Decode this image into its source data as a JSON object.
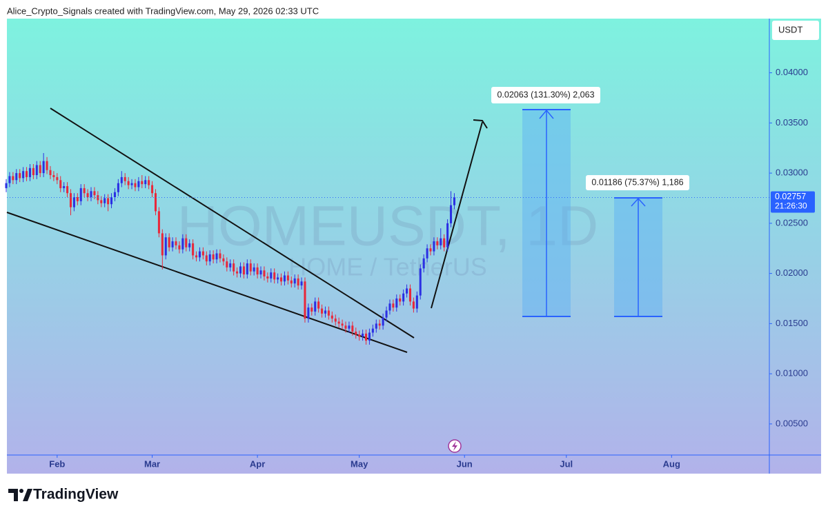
{
  "header": {
    "text": "Alice_Crypto_Signals created with TradingView.com, May 29, 2026 02:33 UTC"
  },
  "chart_data": {
    "type": "candlestick",
    "watermark": "HOMEUSDT, 1D",
    "watermark_subtitle": "HOME / TetherUS",
    "currency": "USDT",
    "up_color": "#2b2fe3",
    "down_color": "#e8283a",
    "x": [
      -15,
      -14,
      -13,
      -12,
      -11,
      -10,
      -9,
      -8,
      -7,
      -6,
      -5,
      -4,
      -3,
      -2,
      -1,
      0,
      1,
      2,
      3,
      4,
      5,
      6,
      7,
      8,
      9,
      10,
      11,
      12,
      13,
      14,
      15,
      16,
      17,
      18,
      19,
      20,
      21,
      22,
      23,
      24,
      25,
      26,
      27,
      28,
      29,
      30,
      31,
      32,
      33,
      34,
      35,
      36,
      37,
      38,
      39,
      40,
      41,
      42,
      43,
      44,
      45,
      46,
      47,
      48,
      49,
      50,
      51,
      52,
      53,
      54,
      55,
      56,
      57,
      58,
      59,
      60,
      61,
      62,
      63,
      64,
      65,
      66,
      67,
      68,
      69,
      70,
      71,
      72,
      73,
      74,
      75,
      76,
      77,
      78,
      79,
      80,
      81,
      82,
      83,
      84,
      85,
      86,
      87,
      88,
      89,
      90,
      91,
      92,
      93,
      94,
      95,
      96,
      97,
      98,
      99,
      100,
      101,
      102,
      103,
      104,
      105,
      106,
      107,
      108,
      109,
      110,
      111,
      112,
      113,
      114,
      115,
      116,
      117
    ],
    "open": [
      0.0285,
      0.029,
      0.0297,
      0.0293,
      0.03,
      0.0295,
      0.0302,
      0.0296,
      0.0305,
      0.0298,
      0.0308,
      0.03,
      0.0312,
      0.0303,
      0.0298,
      0.0296,
      0.0293,
      0.0285,
      0.0287,
      0.028,
      0.0266,
      0.0276,
      0.0272,
      0.0285,
      0.028,
      0.0276,
      0.0282,
      0.0278,
      0.0273,
      0.027,
      0.0275,
      0.0269,
      0.0276,
      0.0281,
      0.029,
      0.0296,
      0.0292,
      0.0288,
      0.029,
      0.0286,
      0.0292,
      0.0289,
      0.0293,
      0.0288,
      0.028,
      0.0262,
      0.024,
      0.0218,
      0.0236,
      0.0226,
      0.0232,
      0.0228,
      0.0224,
      0.0235,
      0.0226,
      0.023,
      0.0218,
      0.0216,
      0.0222,
      0.0218,
      0.0212,
      0.0219,
      0.0214,
      0.022,
      0.0215,
      0.0212,
      0.0206,
      0.021,
      0.0202,
      0.02,
      0.0207,
      0.0199,
      0.021,
      0.0202,
      0.0206,
      0.0199,
      0.0203,
      0.0197,
      0.0195,
      0.0201,
      0.0194,
      0.0196,
      0.0192,
      0.0198,
      0.0193,
      0.019,
      0.0195,
      0.0188,
      0.0192,
      0.0155,
      0.0166,
      0.0162,
      0.0172,
      0.0165,
      0.016,
      0.0163,
      0.0158,
      0.0155,
      0.0152,
      0.015,
      0.0148,
      0.0145,
      0.0148,
      0.0142,
      0.0139,
      0.0137,
      0.014,
      0.0133,
      0.0141,
      0.0145,
      0.015,
      0.0148,
      0.0156,
      0.0163,
      0.017,
      0.0166,
      0.0175,
      0.0172,
      0.018,
      0.0185,
      0.0172,
      0.0165,
      0.0178,
      0.0205,
      0.0215,
      0.0225,
      0.0222,
      0.0232,
      0.0228,
      0.0235,
      0.0226,
      0.025,
      0.0268
    ],
    "high": [
      0.0294,
      0.0301,
      0.0301,
      0.0304,
      0.0304,
      0.0306,
      0.0306,
      0.0309,
      0.0309,
      0.0312,
      0.0312,
      0.032,
      0.0316,
      0.0307,
      0.0302,
      0.03,
      0.0297,
      0.0291,
      0.0291,
      0.0284,
      0.028,
      0.028,
      0.0289,
      0.0289,
      0.0284,
      0.0286,
      0.0286,
      0.0282,
      0.0277,
      0.0279,
      0.0279,
      0.028,
      0.0285,
      0.0294,
      0.0302,
      0.03,
      0.0296,
      0.0294,
      0.0294,
      0.0296,
      0.0298,
      0.0297,
      0.0297,
      0.0292,
      0.0284,
      0.0266,
      0.0244,
      0.024,
      0.024,
      0.0236,
      0.0236,
      0.0232,
      0.0239,
      0.0239,
      0.0234,
      0.0234,
      0.0222,
      0.0226,
      0.0226,
      0.0222,
      0.0223,
      0.0223,
      0.0224,
      0.0224,
      0.0219,
      0.0216,
      0.0214,
      0.0214,
      0.0206,
      0.0211,
      0.0211,
      0.0214,
      0.0214,
      0.021,
      0.021,
      0.0207,
      0.0207,
      0.0201,
      0.0205,
      0.0205,
      0.02,
      0.02,
      0.0202,
      0.0202,
      0.0197,
      0.0199,
      0.0199,
      0.0196,
      0.0196,
      0.017,
      0.017,
      0.0176,
      0.0176,
      0.0169,
      0.0167,
      0.0167,
      0.0162,
      0.0159,
      0.0156,
      0.0154,
      0.0152,
      0.0152,
      0.0152,
      0.0146,
      0.0143,
      0.0144,
      0.0144,
      0.0145,
      0.0149,
      0.0154,
      0.0154,
      0.016,
      0.0167,
      0.0174,
      0.0174,
      0.0179,
      0.0179,
      0.0184,
      0.0189,
      0.0189,
      0.0176,
      0.0182,
      0.0209,
      0.0219,
      0.0229,
      0.0229,
      0.0236,
      0.0236,
      0.0245,
      0.0239,
      0.0254,
      0.0282,
      0.028
    ],
    "low": [
      0.0281,
      0.0286,
      0.0289,
      0.0289,
      0.0291,
      0.0291,
      0.0292,
      0.0292,
      0.0294,
      0.0294,
      0.0296,
      0.0296,
      0.0299,
      0.0294,
      0.0292,
      0.0289,
      0.0281,
      0.0281,
      0.0276,
      0.0258,
      0.0262,
      0.0268,
      0.0268,
      0.0276,
      0.0272,
      0.0272,
      0.0274,
      0.0269,
      0.0266,
      0.0266,
      0.0262,
      0.0265,
      0.0272,
      0.0277,
      0.0286,
      0.0288,
      0.0284,
      0.0284,
      0.0282,
      0.0282,
      0.0285,
      0.0285,
      0.0284,
      0.0276,
      0.0258,
      0.0236,
      0.0204,
      0.0214,
      0.0222,
      0.0222,
      0.0224,
      0.022,
      0.022,
      0.0222,
      0.0222,
      0.0214,
      0.0212,
      0.0212,
      0.0214,
      0.0208,
      0.0208,
      0.021,
      0.021,
      0.0211,
      0.0208,
      0.0202,
      0.0202,
      0.0198,
      0.0196,
      0.0196,
      0.0195,
      0.0195,
      0.0198,
      0.0198,
      0.0195,
      0.0195,
      0.0193,
      0.0191,
      0.0191,
      0.019,
      0.019,
      0.0188,
      0.0188,
      0.0189,
      0.0186,
      0.0186,
      0.0184,
      0.0184,
      0.0151,
      0.0151,
      0.0158,
      0.0158,
      0.0161,
      0.0156,
      0.0156,
      0.0154,
      0.0151,
      0.0148,
      0.0146,
      0.0144,
      0.0141,
      0.0141,
      0.0138,
      0.0135,
      0.0133,
      0.0133,
      0.0129,
      0.0129,
      0.0137,
      0.0141,
      0.0144,
      0.0144,
      0.0152,
      0.0159,
      0.0162,
      0.0162,
      0.0168,
      0.0168,
      0.0176,
      0.0168,
      0.0161,
      0.0161,
      0.0174,
      0.0201,
      0.0211,
      0.0218,
      0.0218,
      0.0224,
      0.0224,
      0.0222,
      0.0222,
      0.0246,
      0.0264
    ],
    "close": [
      0.029,
      0.0297,
      0.0293,
      0.03,
      0.0295,
      0.0302,
      0.0296,
      0.0305,
      0.0298,
      0.0308,
      0.03,
      0.0312,
      0.0303,
      0.0298,
      0.0296,
      0.0293,
      0.0285,
      0.0287,
      0.028,
      0.0266,
      0.0276,
      0.0272,
      0.0285,
      0.028,
      0.0276,
      0.0282,
      0.0278,
      0.0273,
      0.027,
      0.0275,
      0.0269,
      0.0276,
      0.0281,
      0.029,
      0.0296,
      0.0292,
      0.0288,
      0.029,
      0.0286,
      0.0292,
      0.0289,
      0.0293,
      0.0288,
      0.028,
      0.0262,
      0.024,
      0.0218,
      0.0236,
      0.0226,
      0.0232,
      0.0228,
      0.0224,
      0.0235,
      0.0226,
      0.023,
      0.0218,
      0.0216,
      0.0222,
      0.0218,
      0.0212,
      0.0219,
      0.0214,
      0.022,
      0.0215,
      0.0212,
      0.0206,
      0.021,
      0.0202,
      0.02,
      0.0207,
      0.0199,
      0.021,
      0.0202,
      0.0206,
      0.0199,
      0.0203,
      0.0197,
      0.0195,
      0.0201,
      0.0194,
      0.0196,
      0.0192,
      0.0198,
      0.0193,
      0.019,
      0.0195,
      0.0188,
      0.0192,
      0.0155,
      0.0166,
      0.0162,
      0.0172,
      0.0165,
      0.016,
      0.0163,
      0.0158,
      0.0155,
      0.0152,
      0.015,
      0.0148,
      0.0145,
      0.0148,
      0.0142,
      0.0139,
      0.0137,
      0.014,
      0.0133,
      0.0141,
      0.0145,
      0.015,
      0.0148,
      0.0156,
      0.0163,
      0.017,
      0.0166,
      0.0175,
      0.0172,
      0.018,
      0.0185,
      0.0172,
      0.0165,
      0.0178,
      0.0205,
      0.0215,
      0.0225,
      0.0222,
      0.0232,
      0.0228,
      0.0235,
      0.0226,
      0.025,
      0.0268,
      0.0276
    ],
    "xlim": [
      -14.8,
      209.8
    ],
    "xticks": [
      {
        "value": 0,
        "label": "Feb"
      },
      {
        "value": 28,
        "label": "Mar"
      },
      {
        "value": 59,
        "label": "Apr"
      },
      {
        "value": 89,
        "label": "May"
      },
      {
        "value": 120,
        "label": "Jun"
      },
      {
        "value": 150,
        "label": "Jul"
      },
      {
        "value": 181,
        "label": "Aug"
      }
    ],
    "ylim": [
      0.0019,
      0.0454
    ],
    "yticks": [
      {
        "value": 0.005,
        "label": "0.00500"
      },
      {
        "value": 0.01,
        "label": "0.01000"
      },
      {
        "value": 0.015,
        "label": "0.01500"
      },
      {
        "value": 0.02,
        "label": "0.02000"
      },
      {
        "value": 0.025,
        "label": "0.02500"
      },
      {
        "value": 0.03,
        "label": "0.03000"
      },
      {
        "value": 0.035,
        "label": "0.03500"
      },
      {
        "value": 0.04,
        "label": "0.04000"
      }
    ],
    "last_price": 0.02757,
    "countdown": "21:26:30",
    "annotations": [
      "0.02063 (131.30%) 2,063",
      "0.01186 (75.37%) 1,186"
    ]
  },
  "footer": {
    "logo": "TradingView"
  }
}
